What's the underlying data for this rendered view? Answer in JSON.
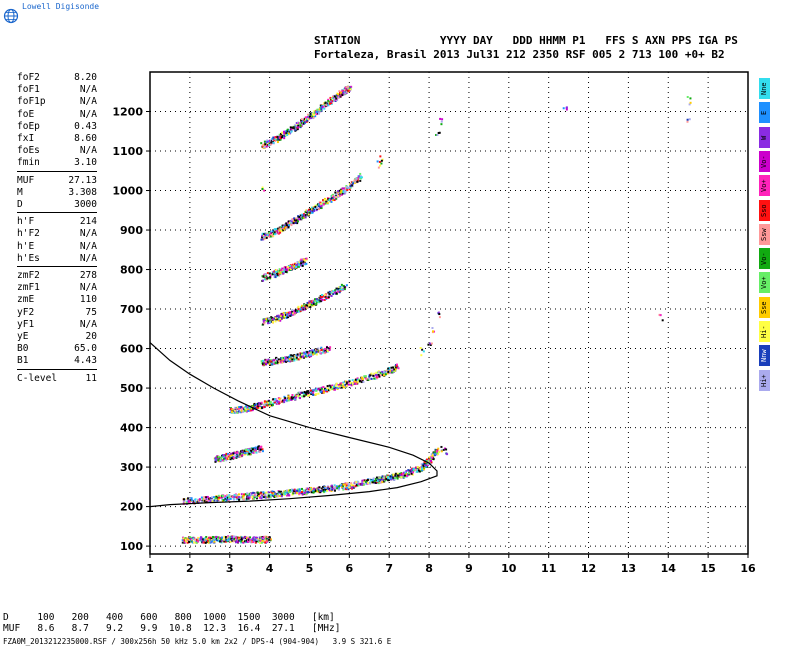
{
  "logo": {
    "text": "Lowell Digisonde",
    "icon": "globe-icon"
  },
  "header": {
    "line1": "STATION            YYYY DAY   DDD HHMM P1   FFS S AXN PPS IGA PS",
    "line2": "Fortaleza, Brasil 2013 Jul31 212 2350 RSF 005 2 713 100 +0+ B2"
  },
  "params": [
    [
      {
        "k": "foF2",
        "v": "8.20"
      },
      {
        "k": "foF1",
        "v": "N/A"
      },
      {
        "k": "foF1p",
        "v": "N/A"
      },
      {
        "k": "foE",
        "v": "N/A"
      },
      {
        "k": "foEp",
        "v": "0.43"
      },
      {
        "k": "fxI",
        "v": "8.60"
      },
      {
        "k": "foEs",
        "v": "N/A"
      },
      {
        "k": "fmin",
        "v": "3.10"
      }
    ],
    [
      {
        "k": "MUF",
        "v": "27.13"
      },
      {
        "k": "M",
        "v": "3.308"
      },
      {
        "k": "D",
        "v": "3000"
      }
    ],
    [
      {
        "k": "h'F",
        "v": "214"
      },
      {
        "k": "h'F2",
        "v": "N/A"
      },
      {
        "k": "h'E",
        "v": "N/A"
      },
      {
        "k": "h'Es",
        "v": "N/A"
      }
    ],
    [
      {
        "k": "zmF2",
        "v": "278"
      },
      {
        "k": "zmF1",
        "v": "N/A"
      },
      {
        "k": "zmE",
        "v": "110"
      },
      {
        "k": "yF2",
        "v": "75"
      },
      {
        "k": "yF1",
        "v": "N/A"
      },
      {
        "k": "yE",
        "v": "20"
      },
      {
        "k": "B0",
        "v": "65.0"
      },
      {
        "k": "B1",
        "v": "4.43"
      }
    ],
    [
      {
        "k": "C-level",
        "v": "11"
      }
    ]
  ],
  "legend": [
    {
      "label": "Nne",
      "color": "#33ddee"
    },
    {
      "label": "E",
      "color": "#1e90ff"
    },
    {
      "label": "W",
      "color": "#8a2be2"
    },
    {
      "label": "Vo-",
      "color": "#cc00cc"
    },
    {
      "label": "Vo+",
      "color": "#ff22bb"
    },
    {
      "label": "Sso",
      "color": "#ff1111"
    },
    {
      "label": "Ssw",
      "color": "#ff9999"
    },
    {
      "label": "Vo-",
      "color": "#11aa11"
    },
    {
      "label": "Vo+",
      "color": "#66ee66"
    },
    {
      "label": "Sse",
      "color": "#ffcc00"
    },
    {
      "label": "Hi-",
      "color": "#ffff44"
    },
    {
      "label": "Nnw",
      "color": "#1a3fbb"
    },
    {
      "label": "Hi+",
      "color": "#aaaaee"
    }
  ],
  "distance_table": {
    "row1": "D     100   200   400   600   800  1000  1500  3000   [km]",
    "row2": "MUF   8.6   8.7   9.2   9.9  10.8  12.3  16.4  27.1   [MHz]"
  },
  "footer": "FZA0M_2013212235000.RSF / 300x256h 50 kHz 5.0 km 2x2 / DPS-4 (904-904)   3.9 S 321.6 E",
  "chart_data": {
    "type": "scatter",
    "xlim": [
      1,
      16
    ],
    "ylim": [
      80,
      1300
    ],
    "x_ticks": [
      1,
      2,
      3,
      4,
      5,
      6,
      7,
      8,
      9,
      10,
      11,
      12,
      13,
      14,
      15,
      16
    ],
    "y_ticks": [
      100,
      200,
      300,
      400,
      500,
      600,
      700,
      800,
      900,
      1000,
      1100,
      1200
    ],
    "grid": true,
    "traces": [
      {
        "name": "Es",
        "points": [
          [
            1.8,
            118
          ],
          [
            2.2,
            118
          ],
          [
            2.6,
            118
          ],
          [
            3.0,
            120
          ],
          [
            3.4,
            118
          ],
          [
            3.8,
            118
          ],
          [
            4.0,
            120
          ]
        ]
      },
      {
        "name": "F",
        "points": [
          [
            1.8,
            215
          ],
          [
            2.4,
            220
          ],
          [
            3.0,
            225
          ],
          [
            3.6,
            230
          ],
          [
            4.2,
            235
          ],
          [
            4.8,
            240
          ],
          [
            5.4,
            247
          ],
          [
            6.0,
            255
          ],
          [
            6.6,
            268
          ],
          [
            7.0,
            275
          ],
          [
            7.4,
            285
          ],
          [
            7.8,
            300
          ],
          [
            8.0,
            320
          ],
          [
            8.2,
            345
          ]
        ]
      },
      {
        "name": "Es-2",
        "points": [
          [
            2.6,
            322
          ],
          [
            3.0,
            330
          ],
          [
            3.4,
            340
          ],
          [
            3.8,
            350
          ]
        ]
      },
      {
        "name": "2F",
        "points": [
          [
            3.0,
            445
          ],
          [
            3.4,
            450
          ],
          [
            3.8,
            460
          ],
          [
            4.4,
            475
          ],
          [
            5.0,
            490
          ],
          [
            5.6,
            505
          ],
          [
            6.2,
            520
          ],
          [
            6.8,
            540
          ],
          [
            7.2,
            555
          ]
        ]
      },
      {
        "name": "Es-3",
        "points": [
          [
            3.8,
            565
          ],
          [
            4.2,
            572
          ],
          [
            4.6,
            580
          ],
          [
            5.0,
            590
          ],
          [
            5.5,
            602
          ]
        ]
      },
      {
        "name": "3F",
        "points": [
          [
            3.8,
            670
          ],
          [
            4.2,
            680
          ],
          [
            4.6,
            695
          ],
          [
            5.0,
            715
          ],
          [
            5.4,
            735
          ],
          [
            5.9,
            760
          ]
        ]
      },
      {
        "name": "Es-4",
        "points": [
          [
            3.8,
            780
          ],
          [
            4.2,
            795
          ],
          [
            4.6,
            810
          ],
          [
            4.9,
            825
          ]
        ]
      },
      {
        "name": "4F",
        "points": [
          [
            3.8,
            885
          ],
          [
            4.2,
            900
          ],
          [
            4.6,
            925
          ],
          [
            5.0,
            950
          ],
          [
            5.4,
            975
          ],
          [
            5.8,
            1000
          ],
          [
            6.3,
            1040
          ]
        ]
      },
      {
        "name": "5F",
        "points": [
          [
            3.8,
            1115
          ],
          [
            4.2,
            1135
          ],
          [
            4.6,
            1160
          ],
          [
            5.0,
            1190
          ],
          [
            5.4,
            1220
          ],
          [
            5.8,
            1250
          ],
          [
            6.0,
            1262
          ]
        ]
      },
      {
        "name": "Ext",
        "points": [
          [
            7.8,
            595
          ],
          [
            8.0,
            620
          ],
          [
            8.1,
            650
          ],
          [
            8.2,
            690
          ],
          [
            8.2,
            1150
          ],
          [
            8.3,
            1180
          ],
          [
            6.7,
            1070
          ],
          [
            6.8,
            1080
          ],
          [
            3.8,
            1010
          ],
          [
            11.4,
            1215
          ],
          [
            14.5,
            1230
          ],
          [
            14.5,
            1180
          ],
          [
            13.8,
            680
          ],
          [
            8.4,
            340
          ],
          [
            8.3,
            350
          ]
        ]
      }
    ],
    "profile": [
      [
        1.0,
        615
      ],
      [
        1.5,
        570
      ],
      [
        2.0,
        535
      ],
      [
        2.6,
        500
      ],
      [
        3.2,
        468
      ],
      [
        4.0,
        430
      ],
      [
        5.0,
        400
      ],
      [
        6.0,
        375
      ],
      [
        7.0,
        350
      ],
      [
        7.6,
        330
      ],
      [
        8.0,
        310
      ],
      [
        8.2,
        290
      ],
      [
        8.2,
        278
      ],
      [
        7.8,
        263
      ],
      [
        7.2,
        248
      ],
      [
        6.5,
        238
      ],
      [
        5.5,
        228
      ],
      [
        4.5,
        220
      ],
      [
        3.5,
        214
      ],
      [
        2.5,
        210
      ],
      [
        1.5,
        205
      ],
      [
        1.0,
        200
      ]
    ]
  }
}
